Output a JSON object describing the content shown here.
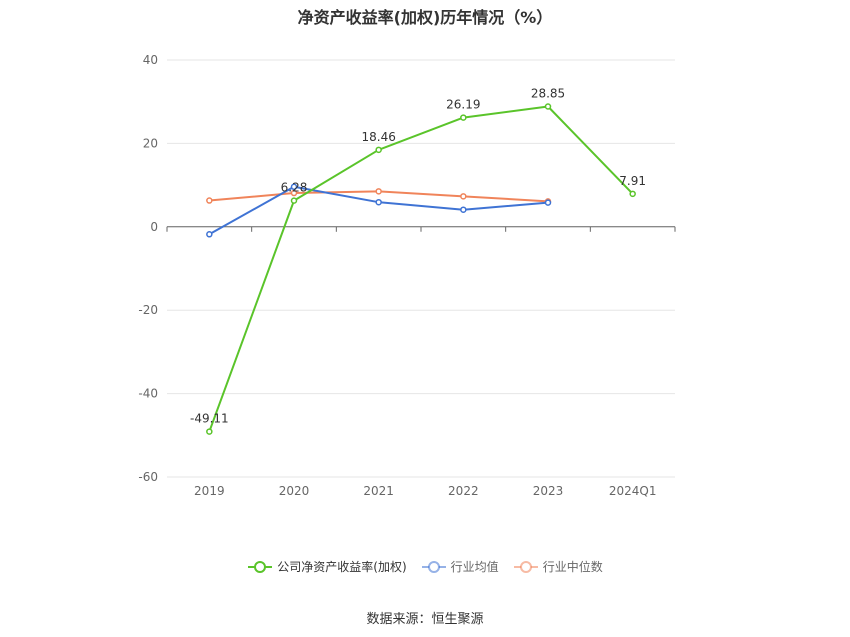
{
  "title": "净资产收益率(加权)历年情况（%）",
  "source": "数据来源：恒生聚源",
  "chart_data": {
    "type": "line",
    "title": "净资产收益率(加权)历年情况（%）",
    "categories": [
      "2019",
      "2020",
      "2021",
      "2022",
      "2023",
      "2024Q1"
    ],
    "ylim": [
      -60,
      40
    ],
    "yticks": [
      40,
      20,
      0,
      -20,
      -40,
      -60
    ],
    "grid": true,
    "legend_position": "bottom",
    "series": [
      {
        "name": "公司净资产收益率(加权)",
        "color": "#5ac42a",
        "values": [
          -49.11,
          6.28,
          18.46,
          26.19,
          28.85,
          7.91
        ],
        "labels": [
          "-49.11",
          "6.28",
          "18.46",
          "26.19",
          "28.85",
          "7.91"
        ]
      },
      {
        "name": "行业均值",
        "color": "#3f73d4",
        "values": [
          -1.8,
          9.6,
          5.9,
          4.1,
          5.8,
          null
        ]
      },
      {
        "name": "行业中位数",
        "color": "#f0845a",
        "values": [
          6.3,
          8.1,
          8.5,
          7.3,
          6.1,
          null
        ]
      }
    ]
  }
}
